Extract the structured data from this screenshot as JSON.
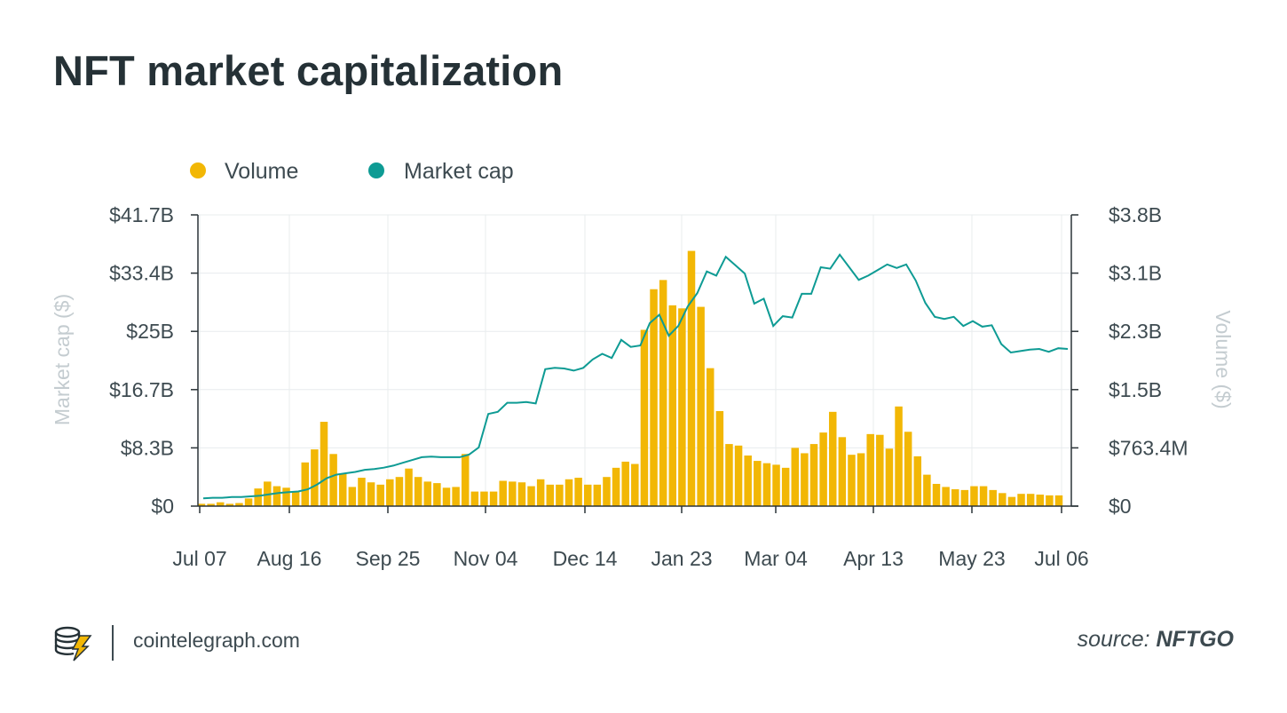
{
  "title": "NFT market capitalization",
  "footer": {
    "site": "cointelegraph.com",
    "source_prefix": "source:",
    "source_name": "NFTGO"
  },
  "colors": {
    "volume": "#f2b705",
    "market_cap": "#0e9b94",
    "grid": "#e8ecee",
    "axis": "#2b3438"
  },
  "chart_data": {
    "type": "bar+line",
    "legend": [
      {
        "name": "Volume",
        "color": "#f2b705"
      },
      {
        "name": "Market cap",
        "color": "#0e9b94"
      }
    ],
    "x_tick_labels": [
      "Jul 07",
      "Aug 16",
      "Sep 25",
      "Nov 04",
      "Dec 14",
      "Jan 23",
      "Mar 04",
      "Apr 13",
      "May 23",
      "Jul 06"
    ],
    "left_axis": {
      "title": "Market cap ($)",
      "min": 0,
      "max": 41.7,
      "unit": "$B",
      "tick_labels": [
        "$0",
        "$8.3B",
        "$16.7B",
        "$25B",
        "$33.4B",
        "$41.7B"
      ]
    },
    "right_axis": {
      "title": "Volume ($)",
      "min": 0,
      "max": 3.8,
      "unit": "$B",
      "tick_labels": [
        "$0",
        "$763.4M",
        "$1.5B",
        "$2.3B",
        "$3.1B",
        "$3.8B"
      ]
    },
    "series": [
      {
        "name": "Volume",
        "type": "bar",
        "axis": "right",
        "unit": "$B",
        "values": [
          0.03,
          0.03,
          0.05,
          0.03,
          0.04,
          0.1,
          0.23,
          0.32,
          0.26,
          0.24,
          0.19,
          0.57,
          0.74,
          1.1,
          0.68,
          0.42,
          0.25,
          0.37,
          0.31,
          0.28,
          0.35,
          0.38,
          0.49,
          0.38,
          0.32,
          0.3,
          0.24,
          0.25,
          0.68,
          0.19,
          0.19,
          0.19,
          0.33,
          0.32,
          0.31,
          0.26,
          0.35,
          0.28,
          0.28,
          0.35,
          0.37,
          0.28,
          0.28,
          0.38,
          0.5,
          0.58,
          0.55,
          2.3,
          2.83,
          2.95,
          2.62,
          2.58,
          3.33,
          2.6,
          1.8,
          1.24,
          0.81,
          0.79,
          0.66,
          0.59,
          0.56,
          0.54,
          0.5,
          0.76,
          0.69,
          0.81,
          0.96,
          1.23,
          0.9,
          0.67,
          0.69,
          0.94,
          0.93,
          0.75,
          1.3,
          0.97,
          0.65,
          0.41,
          0.29,
          0.25,
          0.22,
          0.21,
          0.26,
          0.26,
          0.21,
          0.17,
          0.12,
          0.16,
          0.16,
          0.15,
          0.14,
          0.14
        ]
      },
      {
        "name": "Market cap",
        "type": "line",
        "axis": "left",
        "unit": "$B",
        "values": [
          1.1,
          1.2,
          1.2,
          1.3,
          1.3,
          1.4,
          1.5,
          1.7,
          1.9,
          2.0,
          2.1,
          2.4,
          3.1,
          4.0,
          4.5,
          4.7,
          4.9,
          5.2,
          5.3,
          5.5,
          5.8,
          6.2,
          6.6,
          7.0,
          7.1,
          7.0,
          7.0,
          7.0,
          7.4,
          8.4,
          13.2,
          13.5,
          14.8,
          14.8,
          14.9,
          14.7,
          19.6,
          19.8,
          19.7,
          19.4,
          19.8,
          21.0,
          21.8,
          21.2,
          23.8,
          22.8,
          23.0,
          26.2,
          27.4,
          24.4,
          25.8,
          28.6,
          30.5,
          33.6,
          33.0,
          35.7,
          34.5,
          33.3,
          29.0,
          29.7,
          25.8,
          27.2,
          27.0,
          30.4,
          30.4,
          34.2,
          34.0,
          36.0,
          34.2,
          32.4,
          33.0,
          33.8,
          34.6,
          34.1,
          34.6,
          32.3,
          29.1,
          27.1,
          26.8,
          27.1,
          25.8,
          26.5,
          25.7,
          25.9,
          23.2,
          22.0,
          22.2,
          22.4,
          22.5,
          22.1,
          22.6,
          22.5
        ]
      }
    ]
  }
}
